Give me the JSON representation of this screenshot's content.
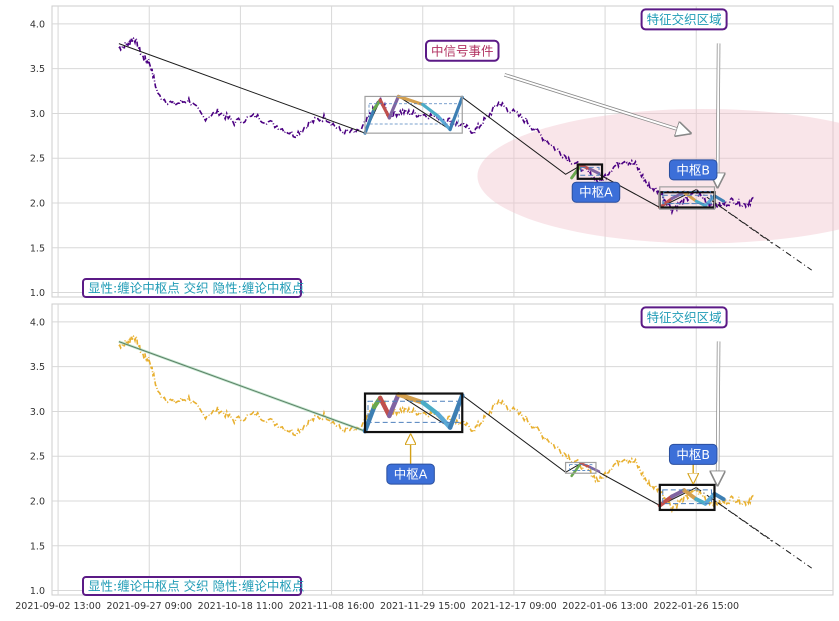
{
  "chart_data": [
    {
      "type": "line",
      "panel": "top",
      "ylim": [
        0.95,
        4.2
      ],
      "yticks": [
        "1.0",
        "1.5",
        "2.0",
        "2.5",
        "3.0",
        "3.5",
        "4.0"
      ],
      "price_color": "#4b0082",
      "price": [
        [
          0.0,
          3.73
        ],
        [
          0.3,
          3.78
        ],
        [
          0.5,
          3.85
        ],
        [
          0.8,
          3.62
        ],
        [
          1.0,
          3.58
        ],
        [
          1.3,
          3.2
        ],
        [
          1.8,
          3.1
        ],
        [
          2.3,
          3.15
        ],
        [
          2.8,
          2.95
        ],
        [
          3.3,
          3.02
        ],
        [
          3.8,
          2.9
        ],
        [
          4.5,
          2.97
        ],
        [
          5.2,
          2.86
        ],
        [
          5.8,
          2.76
        ],
        [
          6.3,
          2.9
        ],
        [
          6.8,
          2.96
        ],
        [
          7.3,
          2.8
        ],
        [
          7.9,
          2.78
        ],
        [
          8.3,
          3.0
        ],
        [
          8.6,
          3.15
        ],
        [
          8.9,
          2.98
        ],
        [
          9.3,
          3.02
        ],
        [
          9.7,
          3.0
        ],
        [
          10.2,
          2.98
        ],
        [
          10.8,
          2.93
        ],
        [
          11.2,
          2.87
        ],
        [
          11.7,
          2.8
        ],
        [
          12.1,
          2.95
        ],
        [
          12.5,
          3.12
        ],
        [
          12.8,
          3.05
        ],
        [
          13.4,
          2.92
        ],
        [
          13.9,
          2.75
        ],
        [
          14.4,
          2.6
        ],
        [
          14.9,
          2.47
        ],
        [
          15.4,
          2.35
        ],
        [
          15.8,
          2.22
        ],
        [
          16.2,
          2.38
        ],
        [
          16.6,
          2.48
        ],
        [
          17.0,
          2.43
        ],
        [
          17.4,
          2.2
        ],
        [
          17.8,
          2.12
        ],
        [
          18.2,
          1.93
        ],
        [
          18.6,
          2.02
        ],
        [
          19.0,
          2.12
        ],
        [
          19.4,
          2.0
        ],
        [
          19.8,
          1.97
        ],
        [
          20.2,
          2.03
        ],
        [
          20.6,
          1.98
        ],
        [
          20.9,
          2.05
        ]
      ],
      "bi": [
        [
          0.0,
          3.78
        ],
        [
          8.1,
          2.78
        ],
        [
          8.4,
          3.05
        ],
        [
          8.6,
          3.15
        ],
        [
          8.9,
          2.95
        ],
        [
          9.2,
          3.19
        ],
        [
          10.0,
          3.1
        ],
        [
          10.5,
          2.97
        ],
        [
          10.9,
          2.82
        ],
        [
          11.3,
          3.18
        ],
        [
          14.7,
          2.32
        ],
        [
          17.8,
          1.95
        ]
      ],
      "xd": [
        [
          0.0,
          3.78
        ],
        [
          8.1,
          2.78
        ],
        [
          8.6,
          3.15
        ],
        [
          8.9,
          2.95
        ],
        [
          9.2,
          3.19
        ],
        [
          10.9,
          2.82
        ],
        [
          11.3,
          3.18
        ],
        [
          14.7,
          2.32
        ],
        [
          15.2,
          2.42
        ],
        [
          15.8,
          2.32
        ],
        [
          17.8,
          1.95
        ],
        [
          19.0,
          2.15
        ]
      ],
      "xd_dashed": [
        [
          [
            19.0,
            2.15
          ],
          [
            21.5,
            1.55
          ]
        ],
        [
          [
            19.5,
            2.03
          ],
          [
            22.8,
            1.25
          ]
        ]
      ],
      "zs": [
        {
          "x0": 8.1,
          "x1": 11.3,
          "y0": 2.78,
          "y1": 3.19,
          "style": "thin"
        },
        {
          "x0": 15.1,
          "x1": 15.9,
          "y0": 2.27,
          "y1": 2.43,
          "style": "dark"
        },
        {
          "x0": 17.8,
          "x1": 19.6,
          "y0": 1.95,
          "y1": 2.12,
          "style": "dark"
        },
        {
          "x0": 17.8,
          "x1": 19.6,
          "y0": 1.93,
          "y1": 2.18,
          "style": "thin"
        }
      ],
      "ellipse": {
        "cx": 19.2,
        "cy": 2.3,
        "rx": 7.4,
        "ry": 0.75
      },
      "annotations": [
        {
          "text": "特征交织区域",
          "type": "outline",
          "x": 18.6,
          "y": 4.05,
          "arrow_to": [
            19.7,
            2.18
          ]
        },
        {
          "text": "中信号事件",
          "type": "outline",
          "x": 11.3,
          "y": 3.7,
          "arrow_to": [
            18.8,
            2.78
          ]
        },
        {
          "text": "中枢A",
          "type": "filled",
          "x": 15.7,
          "y": 2.12
        },
        {
          "text": "中枢B",
          "type": "filled",
          "x": 18.9,
          "y": 2.37
        }
      ],
      "legend": "显性:缠论中枢点 交织 隐性:缠论中枢点"
    },
    {
      "type": "line",
      "panel": "bottom",
      "ylim": [
        0.95,
        4.2
      ],
      "yticks": [
        "1.0",
        "1.5",
        "2.0",
        "2.5",
        "3.0",
        "3.5",
        "4.0"
      ],
      "price_color": "#e8b030",
      "price": [
        [
          0.0,
          3.73
        ],
        [
          0.3,
          3.78
        ],
        [
          0.5,
          3.85
        ],
        [
          0.8,
          3.62
        ],
        [
          1.0,
          3.58
        ],
        [
          1.3,
          3.2
        ],
        [
          1.8,
          3.1
        ],
        [
          2.3,
          3.15
        ],
        [
          2.8,
          2.95
        ],
        [
          3.3,
          3.02
        ],
        [
          3.8,
          2.9
        ],
        [
          4.5,
          2.97
        ],
        [
          5.2,
          2.86
        ],
        [
          5.8,
          2.76
        ],
        [
          6.3,
          2.9
        ],
        [
          6.8,
          2.96
        ],
        [
          7.3,
          2.8
        ],
        [
          7.9,
          2.78
        ],
        [
          8.3,
          3.0
        ],
        [
          8.6,
          3.15
        ],
        [
          8.9,
          2.98
        ],
        [
          9.3,
          3.02
        ],
        [
          9.7,
          3.0
        ],
        [
          10.2,
          2.98
        ],
        [
          10.8,
          2.93
        ],
        [
          11.2,
          2.87
        ],
        [
          11.7,
          2.8
        ],
        [
          12.1,
          2.95
        ],
        [
          12.5,
          3.12
        ],
        [
          12.8,
          3.05
        ],
        [
          13.4,
          2.92
        ],
        [
          13.9,
          2.75
        ],
        [
          14.4,
          2.6
        ],
        [
          14.9,
          2.47
        ],
        [
          15.4,
          2.35
        ],
        [
          15.8,
          2.22
        ],
        [
          16.2,
          2.38
        ],
        [
          16.6,
          2.48
        ],
        [
          17.0,
          2.43
        ],
        [
          17.4,
          2.2
        ],
        [
          17.8,
          2.12
        ],
        [
          18.2,
          1.93
        ],
        [
          18.6,
          2.02
        ],
        [
          19.0,
          2.12
        ],
        [
          19.4,
          2.0
        ],
        [
          19.8,
          1.97
        ],
        [
          20.2,
          2.03
        ],
        [
          20.6,
          1.98
        ],
        [
          20.9,
          2.05
        ]
      ],
      "bi": [
        [
          0.0,
          3.78
        ],
        [
          8.1,
          2.78
        ],
        [
          8.4,
          3.05
        ],
        [
          8.6,
          3.15
        ],
        [
          8.9,
          2.95
        ],
        [
          9.2,
          3.19
        ],
        [
          10.0,
          3.1
        ],
        [
          10.5,
          2.97
        ],
        [
          10.9,
          2.82
        ],
        [
          11.3,
          3.18
        ],
        [
          14.7,
          2.32
        ],
        [
          17.8,
          1.95
        ]
      ],
      "xd": [
        [
          0.0,
          3.78
        ],
        [
          8.1,
          2.78
        ],
        [
          8.6,
          3.15
        ],
        [
          8.9,
          2.95
        ],
        [
          9.2,
          3.19
        ],
        [
          10.9,
          2.82
        ],
        [
          11.3,
          3.18
        ],
        [
          14.7,
          2.32
        ],
        [
          15.2,
          2.42
        ],
        [
          15.8,
          2.32
        ],
        [
          17.8,
          1.95
        ],
        [
          19.0,
          2.15
        ]
      ],
      "xd_dashed": [
        [
          [
            19.0,
            2.15
          ],
          [
            21.5,
            1.55
          ]
        ],
        [
          [
            19.5,
            2.03
          ],
          [
            22.8,
            1.25
          ]
        ]
      ],
      "zs": [
        {
          "x0": 8.1,
          "x1": 11.3,
          "y0": 2.77,
          "y1": 3.2,
          "style": "dark"
        },
        {
          "x0": 14.7,
          "x1": 15.7,
          "y0": 2.31,
          "y1": 2.43,
          "style": "thin"
        },
        {
          "x0": 17.8,
          "x1": 19.6,
          "y0": 1.9,
          "y1": 2.18,
          "style": "dark"
        }
      ],
      "annotations": [
        {
          "text": "特征交织区域",
          "type": "outline",
          "x": 18.6,
          "y": 4.05,
          "arrow_to": [
            19.7,
            2.18
          ]
        },
        {
          "text": "中枢A",
          "type": "filled",
          "x": 9.6,
          "y": 2.3,
          "arrow_to": [
            9.6,
            2.74
          ]
        },
        {
          "text": "中枢B",
          "type": "filled",
          "x": 18.9,
          "y": 2.52,
          "arrow_to": [
            18.9,
            2.2
          ]
        }
      ],
      "legend": "显性:缠论中枢点 交织 隐性:缠论中枢点"
    }
  ],
  "x_axis": {
    "range": [
      -2.2,
      23.5
    ],
    "ticks": [
      {
        "pos": -2.0,
        "label": "2021-09-02 13:00"
      },
      {
        "pos": 1.0,
        "label": "2021-09-27 09:00"
      },
      {
        "pos": 4.0,
        "label": "2021-10-18 11:00"
      },
      {
        "pos": 7.0,
        "label": "2021-11-08 16:00"
      },
      {
        "pos": 10.0,
        "label": "2021-11-29 15:00"
      },
      {
        "pos": 13.0,
        "label": "2021-12-17 09:00"
      },
      {
        "pos": 16.0,
        "label": "2022-01-06 13:00"
      },
      {
        "pos": 19.0,
        "label": "2022-01-26 15:00"
      }
    ]
  },
  "colors": {
    "grid": "#d8d8d8",
    "frame": "#cccccc",
    "bi_segments": [
      "#5aa9d6",
      "#3d7fb3",
      "#6aa84f",
      "#c0504d",
      "#8064a2",
      "#d4a04e",
      "#4bacc6"
    ],
    "xd": "#1b1b1b",
    "zs_dark": "#111111",
    "zs_thin": "#a0a0a0",
    "zs_inner": "#4f81bd",
    "ellipse": "#f2c6cf",
    "label_fill": "#3c6fd8",
    "label_outline": "#5b1a86",
    "annotation_text": "#1f9bb5",
    "legend_text": "#1f9bb5"
  }
}
